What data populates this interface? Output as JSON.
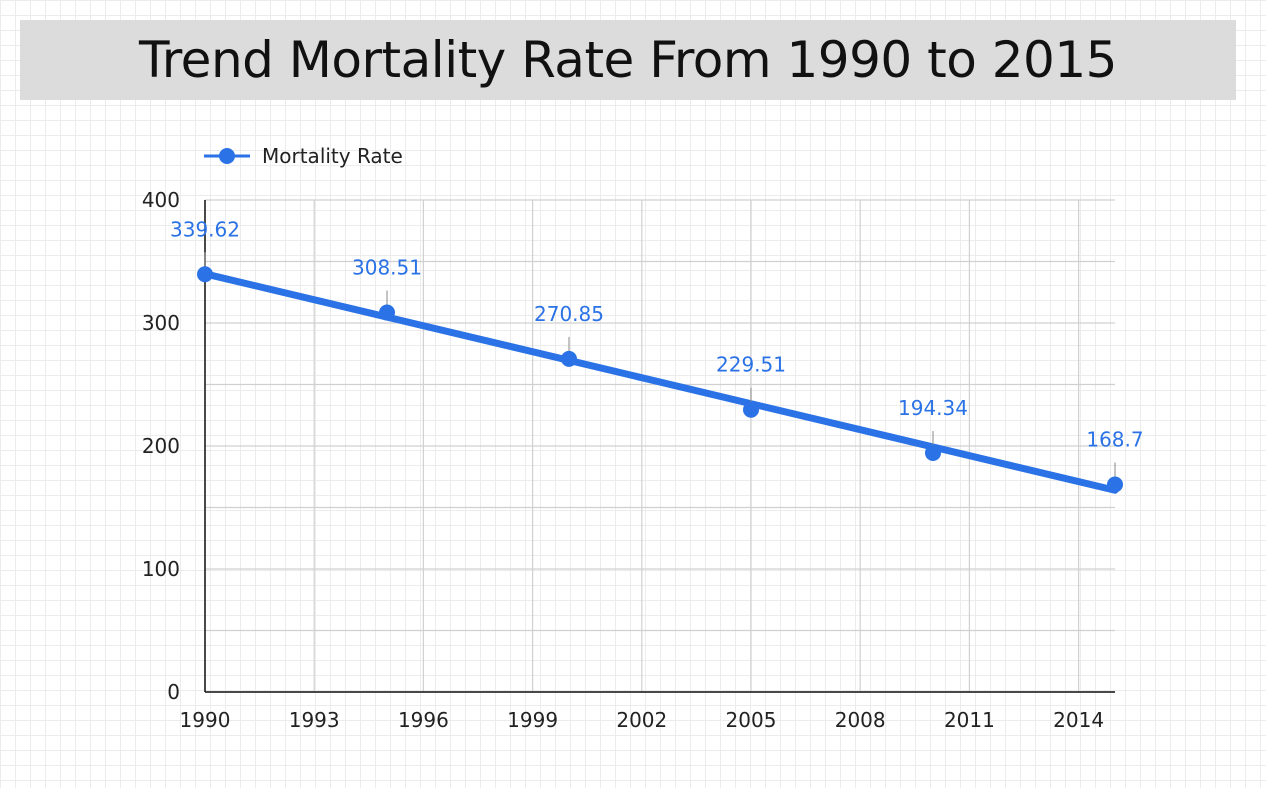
{
  "title": "Trend Mortality Rate From 1990 to 2015",
  "colors": {
    "series": "#2a72e5",
    "grid": "#d0d0d0",
    "axis": "#111111",
    "title_bg": "#dcdcdc"
  },
  "chart_data": {
    "type": "line",
    "title": "Trend Mortality Rate From 1990 to 2015",
    "legend_position": "top-left",
    "grid": true,
    "xlim": [
      1990,
      2015
    ],
    "ylim": [
      0,
      400
    ],
    "x_ticks": [
      1990,
      1993,
      1996,
      1999,
      2002,
      2005,
      2008,
      2011,
      2014
    ],
    "y_ticks": [
      0,
      100,
      200,
      300,
      400
    ],
    "series": [
      {
        "name": "Mortality Rate",
        "x": [
          1990,
          1995,
          2000,
          2005,
          2010,
          2015
        ],
        "values": [
          339.62,
          308.51,
          270.85,
          229.51,
          194.34,
          168.7
        ],
        "labels": [
          "339.62",
          "308.51",
          "270.85",
          "229.51",
          "194.34",
          "168.7"
        ],
        "trendline": {
          "start": [
            1990,
            340
          ],
          "end": [
            2015,
            164
          ]
        }
      }
    ]
  }
}
